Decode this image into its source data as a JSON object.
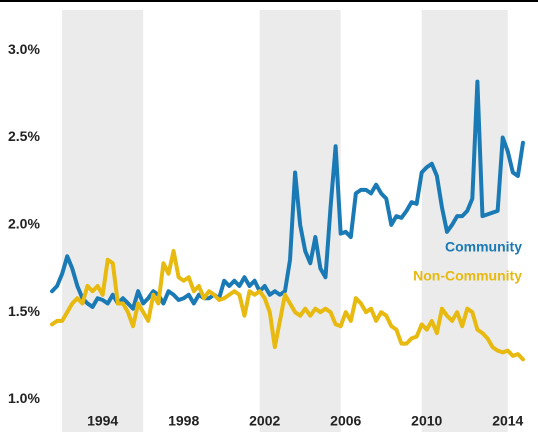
{
  "chart_data": {
    "type": "line",
    "x": [
      1991.5,
      1991.75,
      1992,
      1992.25,
      1992.5,
      1992.75,
      1993,
      1993.25,
      1993.5,
      1993.75,
      1994,
      1994.25,
      1994.5,
      1994.75,
      1995,
      1995.25,
      1995.5,
      1995.75,
      1996,
      1996.25,
      1996.5,
      1996.75,
      1997,
      1997.25,
      1997.5,
      1997.75,
      1998,
      1998.25,
      1998.5,
      1998.75,
      1999,
      1999.25,
      1999.5,
      1999.75,
      2000,
      2000.25,
      2000.5,
      2000.75,
      2001,
      2001.25,
      2001.5,
      2001.75,
      2002,
      2002.25,
      2002.5,
      2002.75,
      2003,
      2003.25,
      2003.5,
      2003.75,
      2004,
      2004.25,
      2004.5,
      2004.75,
      2005,
      2005.25,
      2005.5,
      2005.75,
      2006,
      2006.25,
      2006.5,
      2006.75,
      2007,
      2007.25,
      2007.5,
      2007.75,
      2008,
      2008.25,
      2008.5,
      2008.75,
      2009,
      2009.25,
      2009.5,
      2009.75,
      2010,
      2010.25,
      2010.5,
      2010.75,
      2011,
      2011.25,
      2011.5,
      2011.75,
      2012,
      2012.25,
      2012.5,
      2012.75,
      2013,
      2013.25,
      2013.5,
      2013.75,
      2014,
      2014.25,
      2014.5,
      2014.75
    ],
    "series": [
      {
        "name": "Community",
        "color": "#1a7ab5",
        "values": [
          1.62,
          1.65,
          1.72,
          1.82,
          1.75,
          1.65,
          1.58,
          1.55,
          1.53,
          1.58,
          1.57,
          1.55,
          1.6,
          1.55,
          1.58,
          1.55,
          1.52,
          1.62,
          1.55,
          1.58,
          1.62,
          1.6,
          1.55,
          1.62,
          1.6,
          1.57,
          1.58,
          1.6,
          1.55,
          1.6,
          1.58,
          1.58,
          1.6,
          1.58,
          1.68,
          1.65,
          1.68,
          1.65,
          1.7,
          1.65,
          1.68,
          1.62,
          1.65,
          1.6,
          1.62,
          1.6,
          1.62,
          1.8,
          2.3,
          2.0,
          1.85,
          1.78,
          1.93,
          1.75,
          1.7,
          2.1,
          2.45,
          1.95,
          1.96,
          1.93,
          2.18,
          2.2,
          2.2,
          2.18,
          2.23,
          2.18,
          2.15,
          2.0,
          2.05,
          2.04,
          2.08,
          2.13,
          2.12,
          2.3,
          2.33,
          2.35,
          2.28,
          2.1,
          1.96,
          2.0,
          2.05,
          2.05,
          2.08,
          2.15,
          2.82,
          2.05,
          2.06,
          2.07,
          2.08,
          2.5,
          2.42,
          2.3,
          2.28,
          2.47
        ]
      },
      {
        "name": "Non-Community",
        "color": "#e8b90e",
        "values": [
          1.43,
          1.45,
          1.45,
          1.5,
          1.55,
          1.58,
          1.55,
          1.65,
          1.62,
          1.65,
          1.6,
          1.8,
          1.78,
          1.55,
          1.55,
          1.5,
          1.42,
          1.55,
          1.5,
          1.45,
          1.6,
          1.55,
          1.78,
          1.72,
          1.85,
          1.7,
          1.68,
          1.7,
          1.62,
          1.65,
          1.58,
          1.62,
          1.6,
          1.57,
          1.58,
          1.6,
          1.62,
          1.6,
          1.48,
          1.62,
          1.6,
          1.62,
          1.58,
          1.5,
          1.3,
          1.45,
          1.6,
          1.55,
          1.5,
          1.48,
          1.52,
          1.48,
          1.52,
          1.5,
          1.52,
          1.5,
          1.43,
          1.42,
          1.5,
          1.45,
          1.58,
          1.55,
          1.5,
          1.52,
          1.45,
          1.5,
          1.48,
          1.42,
          1.4,
          1.32,
          1.32,
          1.35,
          1.36,
          1.43,
          1.4,
          1.45,
          1.38,
          1.52,
          1.48,
          1.45,
          1.5,
          1.42,
          1.52,
          1.5,
          1.4,
          1.38,
          1.35,
          1.3,
          1.28,
          1.27,
          1.28,
          1.25,
          1.26,
          1.23
        ]
      }
    ],
    "xlim": [
      1991.4,
      2014.85
    ],
    "xticks": [
      1994,
      1998,
      2002,
      2006,
      2010,
      2014
    ],
    "ylim": [
      0.94,
      3.23
    ],
    "yticks": [
      {
        "value": 1.0,
        "label": "1.0%"
      },
      {
        "value": 1.5,
        "label": "1.5%"
      },
      {
        "value": 2.0,
        "label": "2.0%"
      },
      {
        "value": 2.5,
        "label": "2.5%"
      },
      {
        "value": 3.0,
        "label": "3.0%"
      }
    ],
    "shaded_x_ranges": [
      [
        1992,
        1996
      ],
      [
        2001.75,
        2005.75
      ],
      [
        2009.75,
        2014
      ]
    ],
    "shade_color": "#ebebeb",
    "grid": false
  }
}
